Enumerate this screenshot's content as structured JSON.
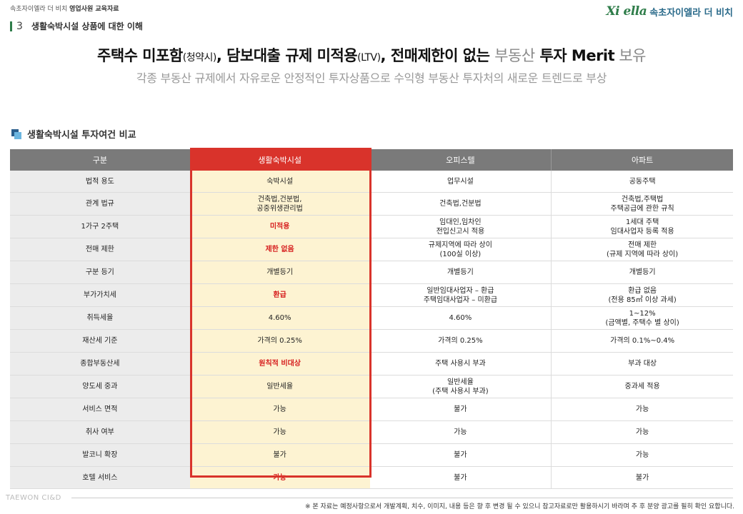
{
  "header": {
    "breadcrumb_prefix": "속초자이엘라 더 비치",
    "breadcrumb_bold": "영업사원 교육자료",
    "brand_logo": "Xi ella",
    "brand_name": "속초자이엘라 더 비치"
  },
  "section": {
    "number": "3",
    "title": "생활숙박시설 상품에 대한 이해"
  },
  "headline": {
    "p1": "주택수 미포함",
    "p1_small": "(청약시)",
    "p2": ", 담보대출 규제 미적용",
    "p2_small": "(LTV)",
    "p3": ", 전매제한이 없는 ",
    "p4": "부동산",
    "p5": " 투자 Merit",
    "p6": " 보유"
  },
  "subline": "각종 부동산 규제에서 자유로운 안정적인 투자상품으로 수익형 부동산 투자처의 새로운 트렌드로 부상",
  "table": {
    "title": "생활숙박시설 투자여건 비교",
    "columns": [
      "구분",
      "생활숙박시설",
      "오피스텔",
      "아파트"
    ],
    "rows": [
      {
        "cells": [
          "법적 용도",
          "숙박시설",
          "업무시설",
          "공동주택"
        ],
        "hl": false
      },
      {
        "cells": [
          "관계 법규",
          "건축법,건분법,\n공중위생관리법",
          "건축법,건분법",
          "건축법,주택법\n주택공급에 관한 규칙"
        ],
        "hl": false
      },
      {
        "cells": [
          "1가구 2주택",
          "미적용",
          "임대인,임차인\n전입신고시 적용",
          "1세대 주택\n임대사업자 등록 적용"
        ],
        "hl": true
      },
      {
        "cells": [
          "전매 제한",
          "제한 없음",
          "규제지역에 따라 상이\n(100실 이상)",
          "전매 제한\n(규제 지역에 따라 상이)"
        ],
        "hl": true
      },
      {
        "cells": [
          "구분 등기",
          "개별등기",
          "개별등기",
          "개별등기"
        ],
        "hl": false
      },
      {
        "cells": [
          "부가가치세",
          "환급",
          "일반임대사업자 – 환급\n주택임대사업자 – 미환급",
          "환급 없음\n(전용 85㎡ 이상 과세)"
        ],
        "hl": true
      },
      {
        "cells": [
          "취득세율",
          "4.60%",
          "4.60%",
          "1~12%\n(금액별, 주택수 별 상이)"
        ],
        "hl": false
      },
      {
        "cells": [
          "재산세 기준",
          "가격의 0.25%",
          "가격의 0.25%",
          "가격의 0.1%~0.4%"
        ],
        "hl": false
      },
      {
        "cells": [
          "종합부동산세",
          "원칙적 비대상",
          "주택 사용시 부과",
          "부과 대상"
        ],
        "hl": true
      },
      {
        "cells": [
          "양도세 중과",
          "일반세율",
          "일반세율\n(주택 사용시 부과)",
          "중과세 적용"
        ],
        "hl": false
      },
      {
        "cells": [
          "서비스 면적",
          "가능",
          "불가",
          "가능"
        ],
        "hl": false
      },
      {
        "cells": [
          "취사 여부",
          "가능",
          "가능",
          "가능"
        ],
        "hl": false
      },
      {
        "cells": [
          "발코니 확장",
          "불가",
          "불가",
          "가능"
        ],
        "hl": false
      },
      {
        "cells": [
          "호텔 서비스",
          "가능",
          "불가",
          "불가"
        ],
        "hl": true
      }
    ]
  },
  "footer": {
    "company": "TAEWON CI&D",
    "disclaimer": "※ 본 자료는 예정사항으로서 개발계획, 치수, 이미지, 내용 등은 향 후 변경 될 수 있으니 참고자료로만 활용하시기 바라며 추 후 분양 광고를 필히 확인 요합니다."
  }
}
